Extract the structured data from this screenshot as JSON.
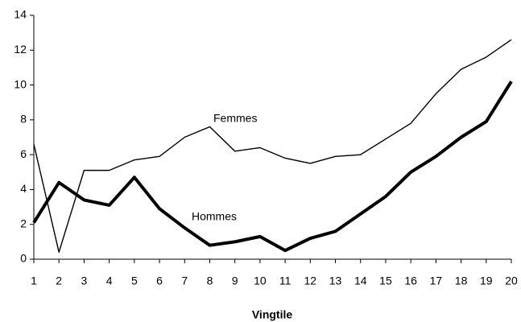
{
  "chart_data": {
    "type": "line",
    "x_label": "Vingtile",
    "categories": [
      "1",
      "2",
      "3",
      "4",
      "5",
      "6",
      "7",
      "8",
      "9",
      "10",
      "11",
      "12",
      "13",
      "14",
      "15",
      "16",
      "17",
      "18",
      "19",
      "20"
    ],
    "series": [
      {
        "name": "Femmes",
        "color": "#000000",
        "values": [
          6.6,
          0.4,
          5.1,
          5.1,
          5.7,
          5.9,
          7.0,
          7.6,
          6.2,
          6.4,
          5.8,
          5.5,
          5.9,
          6.0,
          6.9,
          7.8,
          9.5,
          10.9,
          11.6,
          12.6
        ]
      },
      {
        "name": "Hommes",
        "color": "#000000",
        "values": [
          2.1,
          4.4,
          3.4,
          3.1,
          4.7,
          2.9,
          1.8,
          0.8,
          1.0,
          1.3,
          0.5,
          1.2,
          1.6,
          2.6,
          3.6,
          5.0,
          5.9,
          7.0,
          7.9,
          10.2
        ]
      }
    ],
    "ylim": [
      0,
      14
    ],
    "yticks": [
      0,
      2,
      4,
      6,
      8,
      10,
      12,
      14
    ],
    "grid": false
  }
}
